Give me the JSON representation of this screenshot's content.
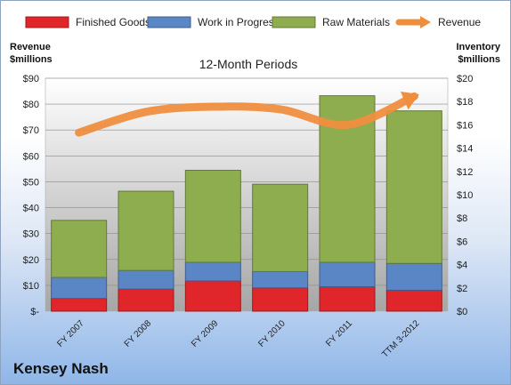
{
  "company": "Kensey Nash",
  "chart_data": {
    "type": "bar",
    "title": "12-Month Periods",
    "categories": [
      "FY 2007",
      "FY 2008",
      "FY 2009",
      "FY 2010",
      "FY 2011",
      "TTM 3-2012"
    ],
    "stacked": true,
    "series": [
      {
        "name": "Finished Goods",
        "axis": "right",
        "values": [
          1.1,
          1.9,
          2.6,
          2.0,
          2.1,
          1.8
        ],
        "color": "#e0262b"
      },
      {
        "name": "Work in Progress",
        "axis": "right",
        "values": [
          1.8,
          1.6,
          1.6,
          1.4,
          2.1,
          2.3
        ],
        "color": "#5b86c6"
      },
      {
        "name": "Raw Materials",
        "axis": "right",
        "values": [
          4.9,
          6.8,
          7.9,
          7.5,
          14.3,
          13.1
        ],
        "color": "#8dad4f"
      },
      {
        "name": "Revenue",
        "type": "line",
        "axis": "left",
        "values": [
          69,
          77,
          79,
          78,
          72,
          83
        ],
        "color": "#ef8e3f"
      }
    ],
    "y_left": {
      "label_lines": [
        "Revenue",
        "$millions"
      ],
      "ylim": [
        0,
        90
      ],
      "ticks": [
        "$-",
        "$10",
        "$20",
        "$30",
        "$40",
        "$50",
        "$60",
        "$70",
        "$80",
        "$90"
      ]
    },
    "y_right": {
      "label_lines": [
        "Inventory",
        "$millions"
      ],
      "ylim": [
        0,
        20
      ],
      "ticks": [
        "$0",
        "$2",
        "$4",
        "$6",
        "$8",
        "$10",
        "$12",
        "$14",
        "$16",
        "$18",
        "$20"
      ]
    },
    "legend_position": "top",
    "grid": true
  }
}
